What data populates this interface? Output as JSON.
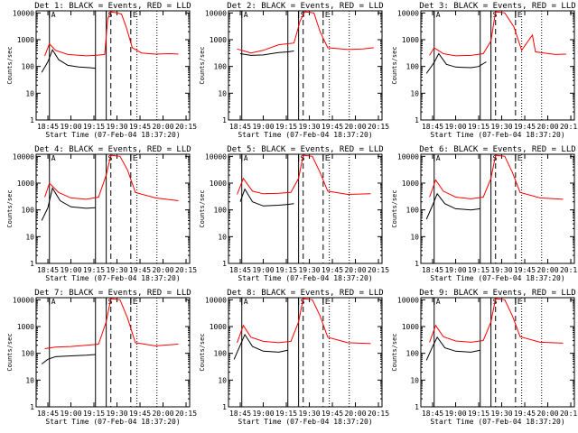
{
  "colors": {
    "events": "#000000",
    "lld": "#ff0000",
    "axes": "#000000",
    "background": "#ffffff"
  },
  "panel_layout": {
    "rows": 3,
    "cols": 3
  },
  "common": {
    "ylabel": "Counts/sec",
    "xlabel": "Start Time (07-Feb-04 18:37:20)",
    "yticks": [
      "1",
      "10",
      "100",
      "1000",
      "10000"
    ],
    "flag_labels": [
      "A",
      "S",
      "E"
    ]
  },
  "chart_data": [
    {
      "type": "line",
      "title": "Det 1: BLACK = Events, RED = LLD",
      "xticklabels": [
        "18:45",
        "19:00",
        "19:15",
        "19:30",
        "19:45",
        "20:00",
        "20:15"
      ],
      "ylim": [
        1,
        12000
      ],
      "yscale": "log",
      "series": [
        {
          "name": "BLACK = Events",
          "values": [
            {
              "x": "18:41",
              "y": 60
            },
            {
              "x": "18:45",
              "y": 150
            },
            {
              "x": "18:48",
              "y": 420
            },
            {
              "x": "18:52",
              "y": 180
            },
            {
              "x": "18:58",
              "y": 110
            },
            {
              "x": "19:05",
              "y": 95
            },
            {
              "x": "19:12",
              "y": 90
            },
            {
              "x": "19:16",
              "y": 85
            }
          ]
        },
        {
          "name": "RED = LLD",
          "values": [
            {
              "x": "18:43",
              "y": 250
            },
            {
              "x": "18:46",
              "y": 700
            },
            {
              "x": "18:50",
              "y": 400
            },
            {
              "x": "18:58",
              "y": 280
            },
            {
              "x": "19:10",
              "y": 250
            },
            {
              "x": "19:16",
              "y": 260
            },
            {
              "x": "19:22",
              "y": 280
            },
            {
              "x": "19:24",
              "y": 6000
            },
            {
              "x": "19:26",
              "y": 11000
            },
            {
              "x": "19:30",
              "y": 10000
            },
            {
              "x": "19:33",
              "y": 9000
            },
            {
              "x": "19:36",
              "y": 3000
            },
            {
              "x": "19:40",
              "y": 500
            },
            {
              "x": "19:46",
              "y": 320
            },
            {
              "x": "19:55",
              "y": 290
            },
            {
              "x": "20:05",
              "y": 300
            },
            {
              "x": "20:10",
              "y": 290
            }
          ]
        }
      ]
    },
    {
      "type": "line",
      "title": "Det 2: BLACK = Events, RED = LLD",
      "xticklabels": [
        "18:45",
        "19:00",
        "19:15",
        "19:30",
        "19:45",
        "20:00",
        "20:15"
      ],
      "ylim": [
        1,
        12000
      ],
      "yscale": "log",
      "series": [
        {
          "name": "BLACK = Events",
          "values": [
            {
              "x": "18:45",
              "y": 300
            },
            {
              "x": "18:52",
              "y": 260
            },
            {
              "x": "19:00",
              "y": 270
            },
            {
              "x": "19:10",
              "y": 330
            },
            {
              "x": "19:16",
              "y": 350
            },
            {
              "x": "19:20",
              "y": 380
            }
          ]
        },
        {
          "name": "RED = LLD",
          "values": [
            {
              "x": "18:43",
              "y": 450
            },
            {
              "x": "18:52",
              "y": 320
            },
            {
              "x": "19:00",
              "y": 400
            },
            {
              "x": "19:10",
              "y": 650
            },
            {
              "x": "19:20",
              "y": 750
            },
            {
              "x": "19:24",
              "y": 5000
            },
            {
              "x": "19:27",
              "y": 11000
            },
            {
              "x": "19:33",
              "y": 10000
            },
            {
              "x": "19:37",
              "y": 2000
            },
            {
              "x": "19:42",
              "y": 500
            },
            {
              "x": "19:55",
              "y": 430
            },
            {
              "x": "20:05",
              "y": 450
            },
            {
              "x": "20:12",
              "y": 500
            }
          ]
        }
      ]
    },
    {
      "type": "line",
      "title": "Det 3: BLACK = Events, RED = LLD",
      "xticklabels": [
        "18:45",
        "19:00",
        "19:15",
        "19:30",
        "19:45",
        "20:00",
        "20:15"
      ],
      "ylim": [
        1,
        12000
      ],
      "yscale": "log",
      "series": [
        {
          "name": "BLACK = Events",
          "values": [
            {
              "x": "18:41",
              "y": 55
            },
            {
              "x": "18:46",
              "y": 140
            },
            {
              "x": "18:49",
              "y": 300
            },
            {
              "x": "18:54",
              "y": 120
            },
            {
              "x": "19:00",
              "y": 95
            },
            {
              "x": "19:10",
              "y": 90
            },
            {
              "x": "19:15",
              "y": 100
            },
            {
              "x": "19:20",
              "y": 150
            }
          ]
        },
        {
          "name": "RED = LLD",
          "values": [
            {
              "x": "18:43",
              "y": 260
            },
            {
              "x": "18:46",
              "y": 500
            },
            {
              "x": "18:52",
              "y": 300
            },
            {
              "x": "19:00",
              "y": 250
            },
            {
              "x": "19:10",
              "y": 260
            },
            {
              "x": "19:18",
              "y": 300
            },
            {
              "x": "19:23",
              "y": 900
            },
            {
              "x": "19:26",
              "y": 11000
            },
            {
              "x": "19:32",
              "y": 10000
            },
            {
              "x": "19:38",
              "y": 3000
            },
            {
              "x": "19:43",
              "y": 400
            },
            {
              "x": "19:50",
              "y": 1500
            },
            {
              "x": "19:52",
              "y": 350
            },
            {
              "x": "20:05",
              "y": 280
            },
            {
              "x": "20:12",
              "y": 290
            }
          ]
        }
      ]
    },
    {
      "type": "line",
      "title": "Det 4: BLACK = Events, RED = LLD",
      "xticklabels": [
        "18:45",
        "19:00",
        "19:15",
        "19:30",
        "19:45",
        "20:00",
        "20:15"
      ],
      "ylim": [
        1,
        12000
      ],
      "yscale": "log",
      "series": [
        {
          "name": "BLACK = Events",
          "values": [
            {
              "x": "18:41",
              "y": 40
            },
            {
              "x": "18:45",
              "y": 120
            },
            {
              "x": "18:48",
              "y": 650
            },
            {
              "x": "18:53",
              "y": 220
            },
            {
              "x": "19:00",
              "y": 130
            },
            {
              "x": "19:10",
              "y": 115
            },
            {
              "x": "19:16",
              "y": 120
            }
          ]
        },
        {
          "name": "RED = LLD",
          "values": [
            {
              "x": "18:43",
              "y": 300
            },
            {
              "x": "18:46",
              "y": 1000
            },
            {
              "x": "18:52",
              "y": 450
            },
            {
              "x": "19:00",
              "y": 280
            },
            {
              "x": "19:10",
              "y": 250
            },
            {
              "x": "19:18",
              "y": 300
            },
            {
              "x": "19:23",
              "y": 2000
            },
            {
              "x": "19:26",
              "y": 11000
            },
            {
              "x": "19:32",
              "y": 10000
            },
            {
              "x": "19:37",
              "y": 3000
            },
            {
              "x": "19:42",
              "y": 450
            },
            {
              "x": "19:55",
              "y": 280
            },
            {
              "x": "20:10",
              "y": 220
            }
          ]
        }
      ]
    },
    {
      "type": "line",
      "title": "Det 5: BLACK = Events, RED = LLD",
      "xticklabels": [
        "18:45",
        "19:00",
        "19:15",
        "19:30",
        "19:45",
        "20:00",
        "20:15"
      ],
      "ylim": [
        1,
        12000
      ],
      "yscale": "log",
      "series": [
        {
          "name": "BLACK = Events",
          "values": [
            {
              "x": "18:45",
              "y": 200
            },
            {
              "x": "18:48",
              "y": 600
            },
            {
              "x": "18:53",
              "y": 200
            },
            {
              "x": "19:00",
              "y": 140
            },
            {
              "x": "19:10",
              "y": 150
            },
            {
              "x": "19:16",
              "y": 160
            },
            {
              "x": "19:20",
              "y": 170
            }
          ]
        },
        {
          "name": "RED = LLD",
          "values": [
            {
              "x": "18:43",
              "y": 380
            },
            {
              "x": "18:47",
              "y": 1500
            },
            {
              "x": "18:53",
              "y": 500
            },
            {
              "x": "19:00",
              "y": 400
            },
            {
              "x": "19:10",
              "y": 420
            },
            {
              "x": "19:18",
              "y": 450
            },
            {
              "x": "19:23",
              "y": 1500
            },
            {
              "x": "19:26",
              "y": 11000
            },
            {
              "x": "19:32",
              "y": 10000
            },
            {
              "x": "19:37",
              "y": 2500
            },
            {
              "x": "19:42",
              "y": 500
            },
            {
              "x": "19:55",
              "y": 380
            },
            {
              "x": "20:10",
              "y": 400
            }
          ]
        }
      ]
    },
    {
      "type": "line",
      "title": "Det 6: BLACK = Events, RED = LLD",
      "xticklabels": [
        "18:45",
        "19:00",
        "19:15",
        "19:30",
        "19:45",
        "20:00",
        "20:15"
      ],
      "ylim": [
        1,
        12000
      ],
      "yscale": "log",
      "series": [
        {
          "name": "BLACK = Events",
          "values": [
            {
              "x": "18:41",
              "y": 45
            },
            {
              "x": "18:45",
              "y": 150
            },
            {
              "x": "18:48",
              "y": 400
            },
            {
              "x": "18:53",
              "y": 170
            },
            {
              "x": "19:00",
              "y": 110
            },
            {
              "x": "19:10",
              "y": 100
            },
            {
              "x": "19:16",
              "y": 110
            }
          ]
        },
        {
          "name": "RED = LLD",
          "values": [
            {
              "x": "18:43",
              "y": 300
            },
            {
              "x": "18:47",
              "y": 1300
            },
            {
              "x": "18:52",
              "y": 500
            },
            {
              "x": "19:00",
              "y": 300
            },
            {
              "x": "19:10",
              "y": 260
            },
            {
              "x": "19:18",
              "y": 300
            },
            {
              "x": "19:23",
              "y": 1500
            },
            {
              "x": "19:26",
              "y": 11000
            },
            {
              "x": "19:32",
              "y": 10000
            },
            {
              "x": "19:37",
              "y": 2500
            },
            {
              "x": "19:42",
              "y": 450
            },
            {
              "x": "19:55",
              "y": 280
            },
            {
              "x": "20:10",
              "y": 250
            }
          ]
        }
      ]
    },
    {
      "type": "line",
      "title": "Det 7: BLACK = Events, RED = LLD",
      "xticklabels": [
        "18:45",
        "19:00",
        "19:15",
        "19:30",
        "19:45",
        "20:00",
        "20:15"
      ],
      "ylim": [
        1,
        12000
      ],
      "yscale": "log",
      "series": [
        {
          "name": "BLACK = Events",
          "values": [
            {
              "x": "18:41",
              "y": 40
            },
            {
              "x": "18:45",
              "y": 60
            },
            {
              "x": "18:50",
              "y": 75
            },
            {
              "x": "19:00",
              "y": 80
            },
            {
              "x": "19:10",
              "y": 85
            },
            {
              "x": "19:16",
              "y": 90
            }
          ]
        },
        {
          "name": "RED = LLD",
          "values": [
            {
              "x": "18:43",
              "y": 150
            },
            {
              "x": "18:50",
              "y": 170
            },
            {
              "x": "19:00",
              "y": 180
            },
            {
              "x": "19:10",
              "y": 200
            },
            {
              "x": "19:18",
              "y": 220
            },
            {
              "x": "19:23",
              "y": 1500
            },
            {
              "x": "19:26",
              "y": 11000
            },
            {
              "x": "19:32",
              "y": 10000
            },
            {
              "x": "19:37",
              "y": 2000
            },
            {
              "x": "19:42",
              "y": 250
            },
            {
              "x": "19:55",
              "y": 190
            },
            {
              "x": "20:10",
              "y": 220
            }
          ]
        }
      ]
    },
    {
      "type": "line",
      "title": "Det 8: BLACK = Events, RED = LLD",
      "xticklabels": [
        "18:45",
        "19:00",
        "19:15",
        "19:30",
        "19:45",
        "20:00",
        "20:15"
      ],
      "ylim": [
        1,
        12000
      ],
      "yscale": "log",
      "series": [
        {
          "name": "BLACK = Events",
          "values": [
            {
              "x": "18:41",
              "y": 60
            },
            {
              "x": "18:45",
              "y": 200
            },
            {
              "x": "18:48",
              "y": 500
            },
            {
              "x": "18:53",
              "y": 180
            },
            {
              "x": "19:00",
              "y": 120
            },
            {
              "x": "19:10",
              "y": 110
            },
            {
              "x": "19:16",
              "y": 130
            }
          ]
        },
        {
          "name": "RED = LLD",
          "values": [
            {
              "x": "18:43",
              "y": 250
            },
            {
              "x": "18:47",
              "y": 1100
            },
            {
              "x": "18:52",
              "y": 400
            },
            {
              "x": "19:00",
              "y": 280
            },
            {
              "x": "19:10",
              "y": 250
            },
            {
              "x": "19:18",
              "y": 280
            },
            {
              "x": "19:23",
              "y": 1500
            },
            {
              "x": "19:26",
              "y": 11000
            },
            {
              "x": "19:32",
              "y": 10000
            },
            {
              "x": "19:37",
              "y": 2500
            },
            {
              "x": "19:42",
              "y": 400
            },
            {
              "x": "19:55",
              "y": 250
            },
            {
              "x": "20:10",
              "y": 230
            }
          ]
        }
      ]
    },
    {
      "type": "line",
      "title": "Det 9: BLACK = Events, RED = LLD",
      "xticklabels": [
        "18:45",
        "19:00",
        "19:15",
        "19:30",
        "19:45",
        "20:00",
        "20:15"
      ],
      "ylim": [
        1,
        12000
      ],
      "yscale": "log",
      "series": [
        {
          "name": "BLACK = Events",
          "values": [
            {
              "x": "18:41",
              "y": 55
            },
            {
              "x": "18:45",
              "y": 180
            },
            {
              "x": "18:48",
              "y": 400
            },
            {
              "x": "18:53",
              "y": 160
            },
            {
              "x": "19:00",
              "y": 120
            },
            {
              "x": "19:10",
              "y": 110
            },
            {
              "x": "19:16",
              "y": 130
            }
          ]
        },
        {
          "name": "RED = LLD",
          "values": [
            {
              "x": "18:43",
              "y": 260
            },
            {
              "x": "18:47",
              "y": 1100
            },
            {
              "x": "18:52",
              "y": 420
            },
            {
              "x": "19:00",
              "y": 290
            },
            {
              "x": "19:10",
              "y": 260
            },
            {
              "x": "19:18",
              "y": 300
            },
            {
              "x": "19:23",
              "y": 1500
            },
            {
              "x": "19:26",
              "y": 11000
            },
            {
              "x": "19:32",
              "y": 10000
            },
            {
              "x": "19:37",
              "y": 2500
            },
            {
              "x": "19:42",
              "y": 420
            },
            {
              "x": "19:55",
              "y": 260
            },
            {
              "x": "20:10",
              "y": 240
            }
          ]
        }
      ]
    }
  ]
}
